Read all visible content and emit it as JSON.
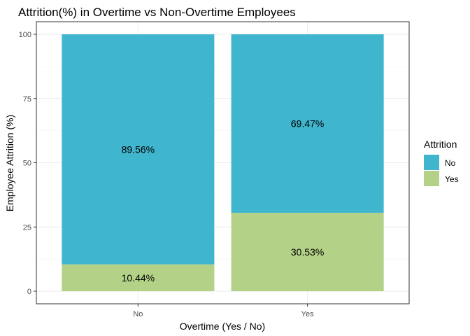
{
  "chart_data": {
    "type": "bar",
    "stacked": true,
    "title": "Attrition(%) in Overtime vs Non-Overtime Employees",
    "xlabel": "Overtime (Yes / No)",
    "ylabel": "Employee Attrition (%)",
    "categories": [
      "No",
      "Yes"
    ],
    "ylim": [
      0,
      100
    ],
    "yticks": [
      0,
      25,
      50,
      75,
      100
    ],
    "ytick_labels": [
      "0",
      "25",
      "50",
      "75",
      "100"
    ],
    "grid": true,
    "legend": {
      "title": "Attrition",
      "position": "right",
      "entries": [
        {
          "label": "No",
          "color": "#40B5CE"
        },
        {
          "label": "Yes",
          "color": "#B3D287"
        }
      ]
    },
    "series": [
      {
        "name": "Yes",
        "values": [
          10.44,
          30.53
        ],
        "labels": [
          "10.44%",
          "30.53%"
        ],
        "color": "#B3D287"
      },
      {
        "name": "No",
        "values": [
          89.56,
          69.47
        ],
        "labels": [
          "89.56%",
          "69.47%"
        ],
        "color": "#40B5CE"
      }
    ]
  }
}
